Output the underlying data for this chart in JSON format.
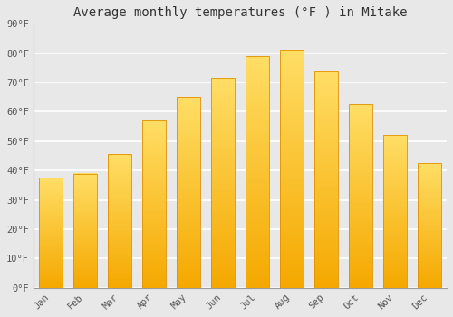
{
  "title": "Average monthly temperatures (°F ) in Mitake",
  "months": [
    "Jan",
    "Feb",
    "Mar",
    "Apr",
    "May",
    "Jun",
    "Jul",
    "Aug",
    "Sep",
    "Oct",
    "Nov",
    "Dec"
  ],
  "values": [
    37.5,
    39.0,
    45.5,
    57.0,
    65.0,
    71.5,
    79.0,
    81.0,
    74.0,
    62.5,
    52.0,
    42.5
  ],
  "bar_color_bottom": "#F5A800",
  "bar_color_top": "#FFD966",
  "bar_edge_color": "#E09000",
  "ylim": [
    0,
    90
  ],
  "yticks": [
    0,
    10,
    20,
    30,
    40,
    50,
    60,
    70,
    80,
    90
  ],
  "ytick_labels": [
    "0°F",
    "10°F",
    "20°F",
    "30°F",
    "40°F",
    "50°F",
    "60°F",
    "70°F",
    "80°F",
    "90°F"
  ],
  "background_color": "#e8e8e8",
  "grid_color": "#ffffff",
  "title_fontsize": 10,
  "tick_fontsize": 7.5,
  "bar_width": 0.7
}
